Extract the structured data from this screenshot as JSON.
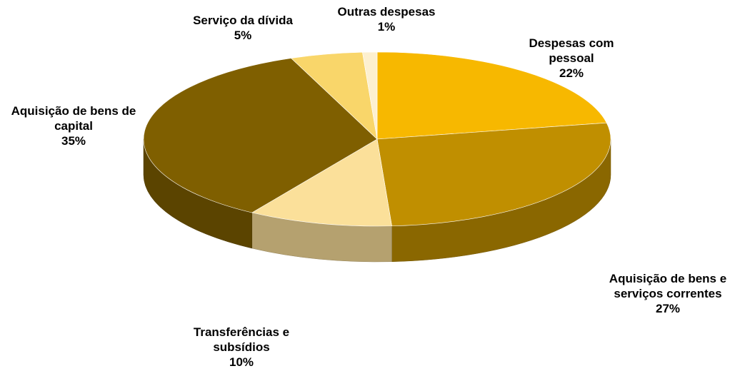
{
  "chart_data": {
    "type": "pie",
    "categories": [
      "Despesas com pessoal",
      "Aquisição de bens e serviços correntes",
      "Transferências e subsídios",
      "Aquisição de bens de capital",
      "Serviço da dívida",
      "Outras despesas"
    ],
    "values": [
      22,
      27,
      10,
      35,
      5,
      1
    ],
    "value_labels": [
      "22%",
      "27%",
      "10%",
      "35%",
      "5%",
      "1%"
    ],
    "colors": [
      "#f7b800",
      "#c08f00",
      "#fbe09a",
      "#7f5f00",
      "#f9d66a",
      "#fdf0cf"
    ]
  }
}
